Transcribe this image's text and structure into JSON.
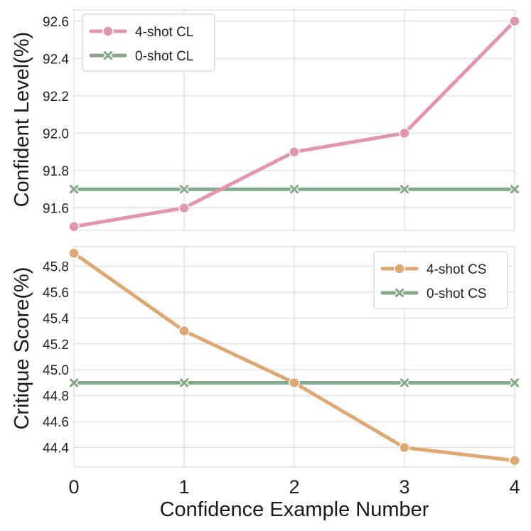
{
  "chart_data": [
    {
      "type": "line",
      "ylabel": "Confident Level(%)",
      "x": [
        0,
        1,
        2,
        3,
        4
      ],
      "ylim": [
        91.48,
        92.66
      ],
      "yticks": [
        "91.6",
        "91.8",
        "92.0",
        "92.2",
        "92.4",
        "92.6"
      ],
      "legend_position": "top-left",
      "grid": true,
      "series": [
        {
          "name": "4-shot CL",
          "values": [
            91.5,
            91.6,
            91.9,
            92.0,
            92.6
          ],
          "color": "#e196ac",
          "marker": "circle"
        },
        {
          "name": "0-shot CL",
          "values": [
            91.7,
            91.7,
            91.7,
            91.7,
            91.7
          ],
          "color": "#84aa8a",
          "marker": "x"
        }
      ]
    },
    {
      "type": "line",
      "ylabel": "Critique Score(%)",
      "xlabel": "Confidence Example Number",
      "x": [
        0,
        1,
        2,
        3,
        4
      ],
      "xticks": [
        "0",
        "1",
        "2",
        "3",
        "4"
      ],
      "ylim": [
        44.25,
        45.95
      ],
      "yticks": [
        "44.4",
        "44.6",
        "44.8",
        "45.0",
        "45.2",
        "45.4",
        "45.6",
        "45.8"
      ],
      "legend_position": "top-right",
      "grid": true,
      "series": [
        {
          "name": "4-shot CS",
          "values": [
            45.9,
            45.3,
            44.9,
            44.4,
            44.3
          ],
          "color": "#dfa872",
          "marker": "circle"
        },
        {
          "name": "0-shot CS",
          "values": [
            44.9,
            44.9,
            44.9,
            44.9,
            44.9
          ],
          "color": "#84aa8a",
          "marker": "x"
        }
      ]
    }
  ]
}
